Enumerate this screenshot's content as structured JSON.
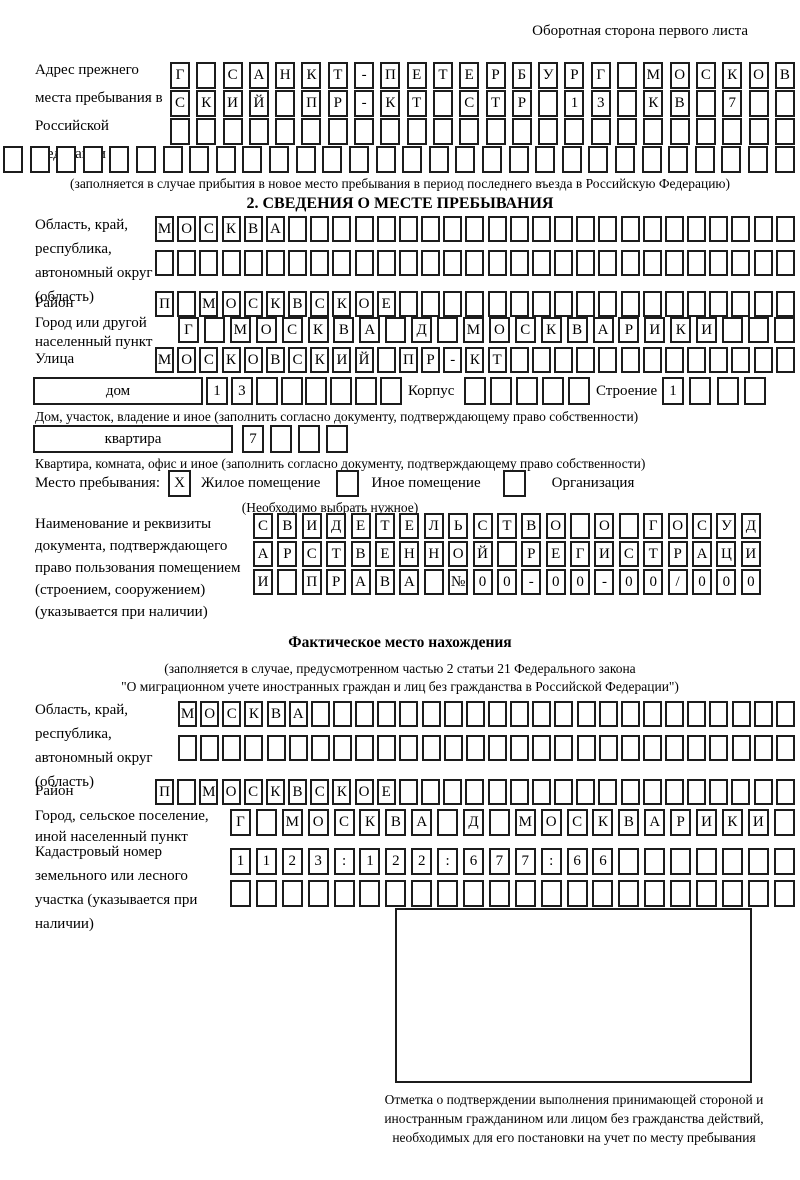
{
  "page_header": {
    "title": "Оборотная сторона первого листа"
  },
  "prev_address": {
    "label": "Адрес прежнего места пребывания в Российской Федерации",
    "rows": [
      {
        "text": "Г САНКТ-ПЕТЕРБУРГ МОСКОВ",
        "len": 24
      },
      {
        "text": "СКИЙ ПР-КТ СТР 13 КВ 7",
        "len": 24
      },
      {
        "text": "",
        "len": 24
      },
      {
        "text": "",
        "len": 30
      }
    ],
    "caption": "(заполняется в случае прибытия в новое место пребывания в период последнего въезда в Российскую Федерацию)"
  },
  "section2": {
    "title": "2. СВЕДЕНИЯ О МЕСТЕ ПРЕБЫВАНИЯ",
    "region": {
      "label": "Область, край, республика, автономный округ (область)",
      "rows": [
        {
          "text": "МОСКВА",
          "len": 29
        },
        {
          "text": "",
          "len": 29
        }
      ]
    },
    "district": {
      "label": "Район",
      "row": {
        "text": "П МОСКВСКОЕ",
        "len": 29
      }
    },
    "city": {
      "label": "Город или другой населенный пункт",
      "row": {
        "text": "Г МОСКВА Д МОСКВАРИКИ",
        "len": 24
      }
    },
    "street": {
      "label": "Улица",
      "row": {
        "text": "МОСКОВСКИЙ ПР-КТ",
        "len": 29
      }
    },
    "house": {
      "box_label": "дом",
      "row": {
        "text": "13",
        "len": 8
      },
      "korpus_label": "Корпус",
      "korpus_row": {
        "text": "",
        "len": 5
      },
      "stroenie_label": "Строение",
      "stroenie_row": {
        "text": "1",
        "len": 4
      },
      "caption": "Дом, участок, владение и иное (заполнить согласно документу, подтверждающему право собственности)"
    },
    "apartment": {
      "box_label": "квартира",
      "row": {
        "text": "7",
        "len": 4
      },
      "caption": "Квартира, комната, офис и иное (заполнить согласно документу, подтверждающему право собственности)"
    },
    "stay_type": {
      "label": "Место пребывания:",
      "options": [
        {
          "label": "Жилое помещение",
          "checked": "X"
        },
        {
          "label": "Иное помещение",
          "checked": ""
        },
        {
          "label": "Организация",
          "checked": ""
        }
      ],
      "caption": "(Необходимо выбрать нужное)"
    },
    "document": {
      "label": "Наименование и реквизиты документа, подтверждающего право пользования помещением (строением, сооружением) (указывается при наличии)",
      "rows": [
        {
          "text": "СВИДЕТЕЛЬСТВО О ГОСУД",
          "len": 21
        },
        {
          "text": "АРСТВЕННОЙ РЕГИСТРАЦИ",
          "len": 21
        },
        {
          "text": "И ПРАВА №00-00-00/000",
          "len": 21
        }
      ]
    }
  },
  "actual_location": {
    "title": "Фактическое место нахождения",
    "caption_line1": "(заполняется в случае, предусмотренном частью 2 статьи 21 Федерального закона",
    "caption_line2": "\"О миграционном учете иностранных граждан и лиц без гражданства в Российской Федерации\")",
    "region": {
      "label": "Область, край, республика, автономный округ (область)",
      "rows": [
        {
          "text": "МОСКВА",
          "len": 28
        },
        {
          "text": "",
          "len": 28
        }
      ]
    },
    "district": {
      "label": "Район",
      "row": {
        "text": "П МОСКВСКОЕ",
        "len": 29
      }
    },
    "city": {
      "label": "Город, сельское поселение, иной населенный пункт",
      "row": {
        "text": "Г МОСКВА Д МОСКВАРИКИ",
        "len": 22
      }
    },
    "cadastral": {
      "label": "Кадастровый номер земельного или лесного участка (указывается при наличии)",
      "rows": [
        {
          "text": "1123:122:677:66",
          "len": 22
        },
        {
          "text": "",
          "len": 22
        }
      ]
    },
    "stamp_note": "Отметка о подтверждении выполнения принимающей стороной и иностранным гражданином или лицом без гражданства действий, необходимых для его постановки на учет по месту пребывания"
  }
}
